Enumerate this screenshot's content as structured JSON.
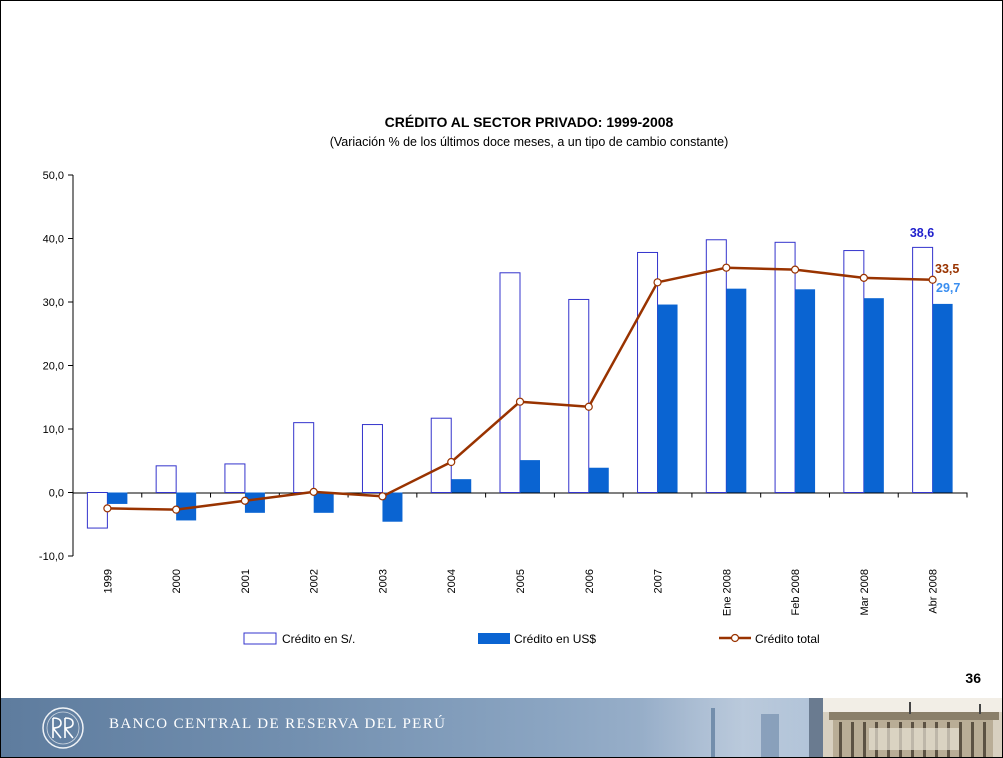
{
  "slide": {
    "page_number": "36",
    "footer": {
      "bank_name": "BANCO CENTRAL DE RESERVA DEL PERÚ",
      "logo_icon": "bcrp-monogram-icon",
      "photo": "building-photo"
    },
    "colors": {
      "bar_soles_stroke": "#3333cc",
      "bar_dollars_fill": "#0a64d2",
      "line_total": "#993300",
      "label_soles": "#1f1fcc",
      "label_dollars": "#3a8ef0",
      "label_total": "#993300"
    }
  },
  "chart_data": {
    "type": "bar",
    "title": "CRÉDITO AL SECTOR PRIVADO: 1999-2008",
    "subtitle": "(Variación % de los últimos doce meses, a un tipo de cambio constante)",
    "categories": [
      "1999",
      "2000",
      "2001",
      "2002",
      "2003",
      "2004",
      "2005",
      "2006",
      "2007",
      "Ene 2008",
      "Feb 2008",
      "Mar 2008",
      "Abr 2008"
    ],
    "series": [
      {
        "name": "Crédito en S/.",
        "kind": "bar",
        "style": "outline",
        "values": [
          -5.6,
          4.2,
          4.5,
          11.0,
          10.7,
          11.7,
          34.6,
          30.4,
          37.8,
          39.8,
          39.4,
          38.1,
          38.6
        ]
      },
      {
        "name": "Crédito en US$",
        "kind": "bar",
        "style": "filled",
        "values": [
          -1.8,
          -4.4,
          -3.2,
          -3.2,
          -4.6,
          2.1,
          5.1,
          3.9,
          29.6,
          32.1,
          32.0,
          30.6,
          29.7
        ]
      },
      {
        "name": "Crédito total",
        "kind": "line",
        "marker": "circle",
        "values": [
          -2.5,
          -2.7,
          -1.3,
          0.1,
          -0.6,
          4.8,
          14.3,
          13.5,
          33.1,
          35.4,
          35.1,
          33.8,
          33.5
        ]
      }
    ],
    "ylim": [
      -10,
      50
    ],
    "yticks": [
      "-10,0",
      "0,0",
      "10,0",
      "20,0",
      "30,0",
      "40,0",
      "50,0"
    ],
    "data_labels": {
      "soles_last": "38,6",
      "total_last": "33,5",
      "dollars_last": "29,7"
    },
    "legend": {
      "position": "bottom"
    },
    "grid": false,
    "xlabel": "",
    "ylabel": ""
  }
}
